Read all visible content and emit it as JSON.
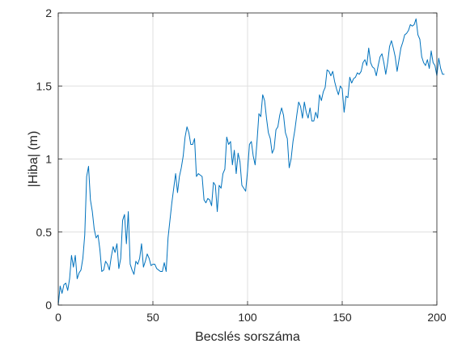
{
  "chart_data": {
    "type": "line",
    "title": "",
    "xlabel": "Becslés sorszáma",
    "ylabel": "|Hiba| (m)",
    "xlim": [
      0,
      200
    ],
    "ylim": [
      0,
      2
    ],
    "xticks": [
      0,
      50,
      100,
      150,
      200
    ],
    "xtick_labels": [
      "0",
      "50",
      "100",
      "150",
      "200"
    ],
    "yticks": [
      0,
      0.5,
      1,
      1.5,
      2
    ],
    "ytick_labels": [
      "0",
      "0.5",
      "1",
      "1.5",
      "2"
    ],
    "grid": true,
    "legend": "none",
    "line_color": "#0072BD",
    "series": [
      {
        "values": [
          0.0,
          0.13,
          0.08,
          0.14,
          0.15,
          0.1,
          0.18,
          0.34,
          0.26,
          0.34,
          0.18,
          0.22,
          0.24,
          0.32,
          0.48,
          0.88,
          0.95,
          0.72,
          0.64,
          0.52,
          0.46,
          0.48,
          0.38,
          0.23,
          0.24,
          0.3,
          0.28,
          0.24,
          0.33,
          0.4,
          0.36,
          0.42,
          0.25,
          0.32,
          0.58,
          0.62,
          0.42,
          0.64,
          0.28,
          0.24,
          0.21,
          0.3,
          0.28,
          0.32,
          0.42,
          0.26,
          0.3,
          0.35,
          0.32,
          0.27,
          0.28,
          0.28,
          0.25,
          0.24,
          0.23,
          0.23,
          0.29,
          0.23,
          0.46,
          0.58,
          0.7,
          0.8,
          0.9,
          0.77,
          0.88,
          0.94,
          1.02,
          1.15,
          1.22,
          1.18,
          1.1,
          1.1,
          1.14,
          0.88,
          0.9,
          0.89,
          0.88,
          0.72,
          0.7,
          0.73,
          0.72,
          0.68,
          0.84,
          0.82,
          0.64,
          0.82,
          0.8,
          0.9,
          0.93,
          1.15,
          1.1,
          1.12,
          0.96,
          1.06,
          0.9,
          1.04,
          0.98,
          0.82,
          0.8,
          0.78,
          0.92,
          1.1,
          1.12,
          1.02,
          0.96,
          1.12,
          1.31,
          1.29,
          1.44,
          1.4,
          1.28,
          1.18,
          1.14,
          1.04,
          1.07,
          1.2,
          1.22,
          1.3,
          1.35,
          1.3,
          1.18,
          1.14,
          0.94,
          1.0,
          1.12,
          1.2,
          1.3,
          1.39,
          1.36,
          1.28,
          1.39,
          1.32,
          1.28,
          1.35,
          1.26,
          1.26,
          1.32,
          1.28,
          1.44,
          1.4,
          1.46,
          1.49,
          1.61,
          1.6,
          1.57,
          1.6,
          1.53,
          1.48,
          1.44,
          1.5,
          1.48,
          1.32,
          1.43,
          1.42,
          1.56,
          1.52,
          1.55,
          1.56,
          1.59,
          1.58,
          1.6,
          1.66,
          1.68,
          1.64,
          1.76,
          1.66,
          1.63,
          1.62,
          1.57,
          1.64,
          1.7,
          1.72,
          1.66,
          1.58,
          1.66,
          1.77,
          1.81,
          1.76,
          1.7,
          1.6,
          1.68,
          1.76,
          1.8,
          1.85,
          1.86,
          1.88,
          1.92,
          1.91,
          1.92,
          1.96,
          1.85,
          1.82,
          1.7,
          1.66,
          1.64,
          1.68,
          1.62,
          1.74,
          1.66,
          1.64,
          1.57,
          1.69,
          1.62,
          1.58,
          1.58
        ]
      }
    ]
  }
}
